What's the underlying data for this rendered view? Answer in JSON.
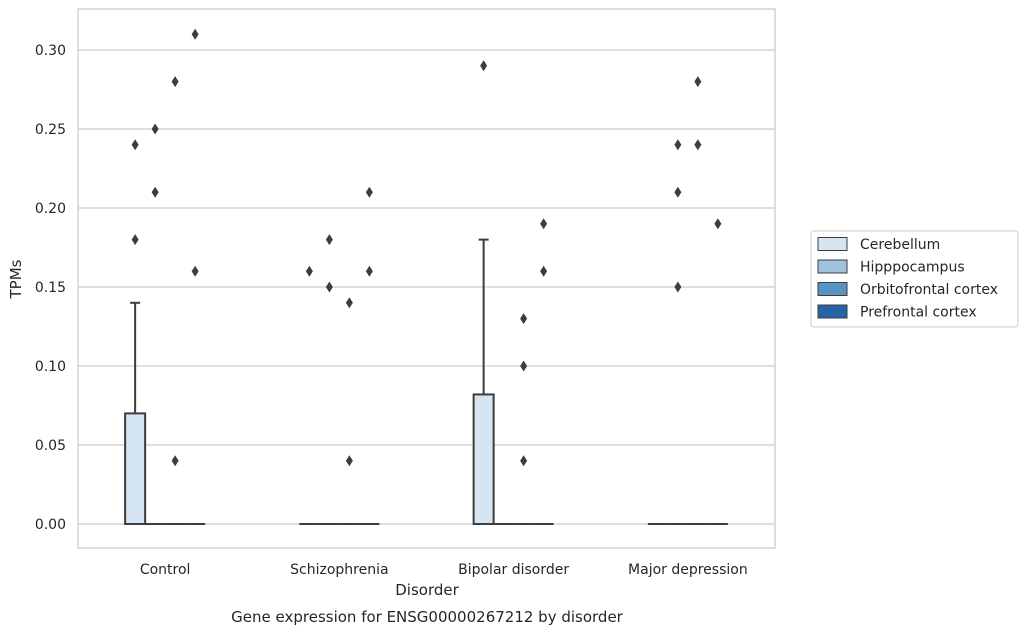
{
  "chart_data": {
    "type": "box",
    "caption": "Gene expression for ENSG00000267212 by disorder",
    "xlabel": "Disorder",
    "ylabel": "TPMs",
    "ylim": [
      -0.015,
      0.326
    ],
    "yticks": [
      0.0,
      0.05,
      0.1,
      0.15,
      0.2,
      0.25,
      0.3
    ],
    "ytick_labels": [
      "0.00",
      "0.05",
      "0.10",
      "0.15",
      "0.20",
      "0.25",
      "0.30"
    ],
    "grid": true,
    "legend_position": "right",
    "categories": [
      "Control",
      "Schizophrenia",
      "Bipolar disorder",
      "Major depression"
    ],
    "series": [
      {
        "name": "Cerebellum",
        "color": "#d6e5f3",
        "boxes": [
          {
            "q1": 0.0,
            "median": 0.0,
            "q3": 0.07,
            "whisker_low": 0.0,
            "whisker_high": 0.14,
            "outliers": [
              0.18,
              0.24
            ]
          },
          {
            "q1": 0.0,
            "median": 0.0,
            "q3": 0.0,
            "whisker_low": 0.0,
            "whisker_high": 0.0,
            "outliers": [
              0.16
            ]
          },
          {
            "q1": 0.0,
            "median": 0.0,
            "q3": 0.082,
            "whisker_low": 0.0,
            "whisker_high": 0.18,
            "outliers": [
              0.29
            ]
          },
          {
            "q1": 0.0,
            "median": 0.0,
            "q3": 0.0,
            "whisker_low": 0.0,
            "whisker_high": 0.0,
            "outliers": []
          }
        ]
      },
      {
        "name": "Hipppocampus",
        "color": "#9dc3dd",
        "boxes": [
          {
            "q1": 0.0,
            "median": 0.0,
            "q3": 0.0,
            "whisker_low": 0.0,
            "whisker_high": 0.0,
            "outliers": [
              0.21,
              0.25
            ]
          },
          {
            "q1": 0.0,
            "median": 0.0,
            "q3": 0.0,
            "whisker_low": 0.0,
            "whisker_high": 0.0,
            "outliers": [
              0.15,
              0.18
            ]
          },
          {
            "q1": 0.0,
            "median": 0.0,
            "q3": 0.0,
            "whisker_low": 0.0,
            "whisker_high": 0.0,
            "outliers": []
          },
          {
            "q1": 0.0,
            "median": 0.0,
            "q3": 0.0,
            "whisker_low": 0.0,
            "whisker_high": 0.0,
            "outliers": [
              0.15,
              0.21,
              0.24
            ]
          }
        ]
      },
      {
        "name": "Orbitofrontal cortex",
        "color": "#5995c2",
        "boxes": [
          {
            "q1": 0.0,
            "median": 0.0,
            "q3": 0.0,
            "whisker_low": 0.0,
            "whisker_high": 0.0,
            "outliers": [
              0.04,
              0.28
            ]
          },
          {
            "q1": 0.0,
            "median": 0.0,
            "q3": 0.0,
            "whisker_low": 0.0,
            "whisker_high": 0.0,
            "outliers": [
              0.04,
              0.14
            ]
          },
          {
            "q1": 0.0,
            "median": 0.0,
            "q3": 0.0,
            "whisker_low": 0.0,
            "whisker_high": 0.0,
            "outliers": [
              0.04,
              0.1,
              0.13
            ]
          },
          {
            "q1": 0.0,
            "median": 0.0,
            "q3": 0.0,
            "whisker_low": 0.0,
            "whisker_high": 0.0,
            "outliers": [
              0.24,
              0.28
            ]
          }
        ]
      },
      {
        "name": "Prefrontal cortex",
        "color": "#2565a5",
        "boxes": [
          {
            "q1": 0.0,
            "median": 0.0,
            "q3": 0.0,
            "whisker_low": 0.0,
            "whisker_high": 0.0,
            "outliers": [
              0.16,
              0.31
            ]
          },
          {
            "q1": 0.0,
            "median": 0.0,
            "q3": 0.0,
            "whisker_low": 0.0,
            "whisker_high": 0.0,
            "outliers": [
              0.16,
              0.21
            ]
          },
          {
            "q1": 0.0,
            "median": 0.0,
            "q3": 0.0,
            "whisker_low": 0.0,
            "whisker_high": 0.0,
            "outliers": [
              0.16,
              0.19
            ]
          },
          {
            "q1": 0.0,
            "median": 0.0,
            "q3": 0.0,
            "whisker_low": 0.0,
            "whisker_high": 0.0,
            "outliers": [
              0.19
            ]
          }
        ]
      }
    ]
  }
}
